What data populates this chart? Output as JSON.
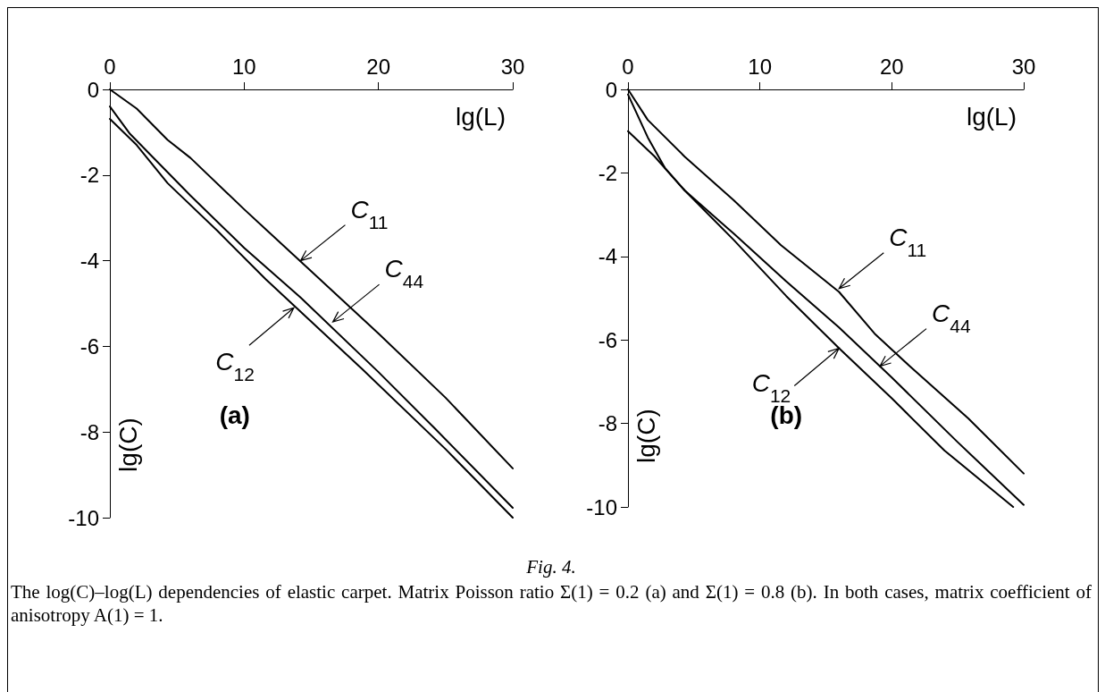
{
  "chart_data": [
    {
      "type": "line",
      "title": "(a)",
      "xlabel": "lg(L)",
      "ylabel": "lg(C)",
      "xlim": [
        0,
        30
      ],
      "xticks": [
        0,
        10,
        20,
        30
      ],
      "ylim": [
        -10,
        0
      ],
      "yticks": [
        -10,
        -8,
        -6,
        -4,
        -2,
        0
      ],
      "grid": false,
      "marker": "none",
      "line_style": "solid",
      "series": [
        {
          "color": "#000000",
          "x": [
            0,
            2,
            4.3,
            6,
            10,
            15,
            20,
            25,
            30
          ],
          "values": [
            0,
            -0.45,
            -1.18,
            -1.6,
            -2.8,
            -4.25,
            -5.7,
            -7.2,
            -8.85
          ]
        },
        {
          "color": "#000000",
          "x": [
            0,
            1.5,
            6,
            10,
            14.2,
            20,
            24.3,
            30
          ],
          "values": [
            -0.4,
            -1.04,
            -2.48,
            -3.7,
            -4.86,
            -6.6,
            -7.95,
            -9.77
          ]
        },
        {
          "color": "#000000",
          "x": [
            0,
            2,
            4.3,
            8,
            11.6,
            18.75,
            25,
            30
          ],
          "values": [
            -0.69,
            -1.3,
            -2.19,
            -3.3,
            -4.43,
            -6.52,
            -8.4,
            -10
          ]
        }
      ],
      "annotations": [
        {
          "text": "C$_{11}$",
          "x": 14.2,
          "y": -4
        },
        {
          "text": "C$_{44}$",
          "x": 16.6,
          "y": -5.43
        },
        {
          "text": "C$_{12}$",
          "x": 13.7,
          "y": -5.1
        },
        "Fig. 4.",
        "The log(C)–log(L) dependencies of elastic carpet. Matrix Poisson ratio Σ(1) = 0.2 (a) and Σ(1) = 0.8 (b). In both cases, matrix coefficient of anisotropy A(1) = 1."
      ]
    },
    {
      "type": "line",
      "title": "(b)",
      "xlabel": "lg(L)",
      "ylabel": "lg(C)",
      "xlim": [
        0,
        30
      ],
      "xticks": [
        0,
        10,
        20,
        30
      ],
      "ylim": [
        -10,
        0
      ],
      "yticks": [
        -10,
        -8,
        -6,
        -4,
        -2,
        0
      ],
      "grid": false,
      "marker": "none",
      "line_style": "solid",
      "series": [
        {
          "color": "#000000",
          "x": [
            0,
            1.5,
            4.3,
            8,
            11.6,
            16,
            18.7,
            21.3,
            25.8,
            30
          ],
          "values": [
            0,
            -0.73,
            -1.61,
            -2.65,
            -3.73,
            -4.85,
            -5.85,
            -6.61,
            -7.88,
            -9.2
          ]
        },
        {
          "color": "#000000",
          "x": [
            0,
            1.5,
            2.8,
            4.3,
            8,
            12,
            16,
            20,
            25,
            30
          ],
          "values": [
            -0.12,
            -1.15,
            -1.88,
            -2.42,
            -3.45,
            -4.6,
            -5.7,
            -6.9,
            -8.45,
            -9.95
          ]
        },
        {
          "color": "#000000",
          "x": [
            0,
            2,
            4.3,
            8,
            12,
            16,
            20,
            24,
            29.2
          ],
          "values": [
            -1,
            -1.6,
            -2.42,
            -3.6,
            -4.95,
            -6.2,
            -7.4,
            -8.65,
            -10
          ]
        }
      ],
      "annotations": [
        {
          "text": "C$_{11}$",
          "x": 16,
          "y": -4.77
        },
        {
          "text": "C$_{44}$",
          "x": 19.1,
          "y": -6.63
        },
        {
          "text": "C$_{12}$",
          "x": 16,
          "y": -6.2
        }
      ]
    }
  ]
}
